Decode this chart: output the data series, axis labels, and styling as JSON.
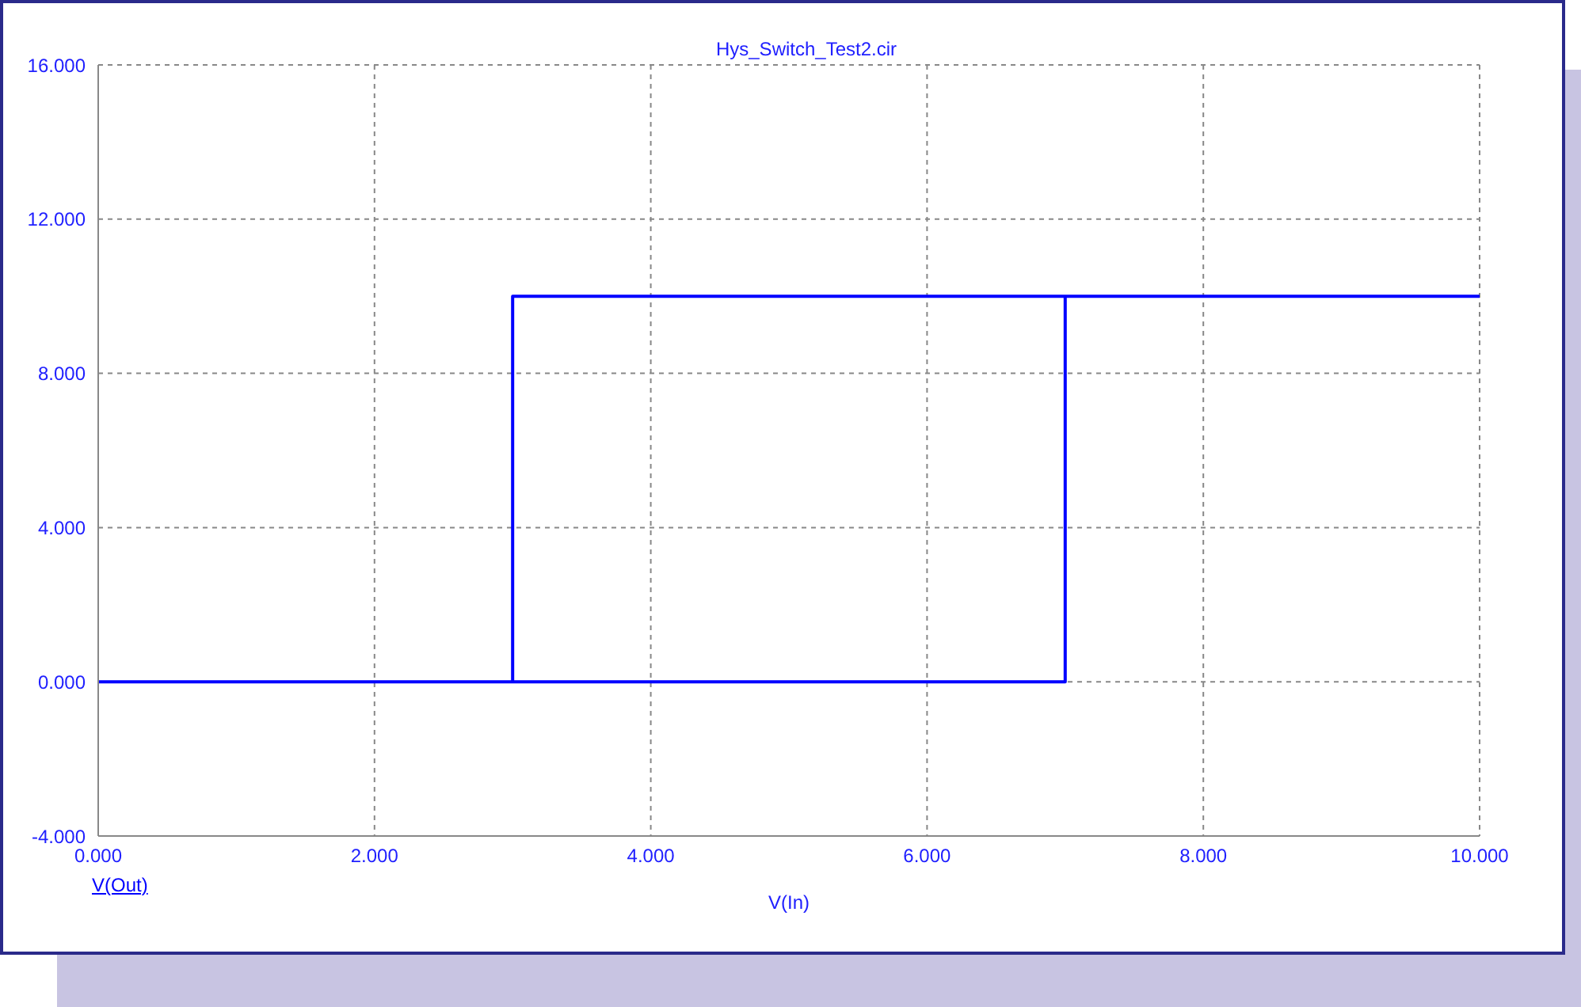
{
  "chart_data": {
    "type": "line",
    "title": "Hys_Switch_Test2.cir",
    "xlabel": "V(In)",
    "x": [
      0,
      7,
      7,
      10,
      3,
      3
    ],
    "series": [
      {
        "name": "V(Out)",
        "color": "#0000ff",
        "values": [
          0,
          0,
          10,
          10,
          10,
          0
        ]
      }
    ],
    "xlim": [
      0,
      10
    ],
    "xticks": [
      {
        "value": 0,
        "label": "0.000"
      },
      {
        "value": 2,
        "label": "2.000"
      },
      {
        "value": 4,
        "label": "4.000"
      },
      {
        "value": 6,
        "label": "6.000"
      },
      {
        "value": 8,
        "label": "8.000"
      },
      {
        "value": 10,
        "label": "10.000"
      }
    ],
    "ylim": [
      -4,
      16
    ],
    "yticks": [
      {
        "value": -4,
        "label": "-4.000"
      },
      {
        "value": 0,
        "label": "0.000"
      },
      {
        "value": 4,
        "label": "4.000"
      },
      {
        "value": 8,
        "label": "8.000"
      },
      {
        "value": 12,
        "label": "12.000"
      },
      {
        "value": 16,
        "label": "16.000"
      }
    ],
    "grid": true,
    "legend": "bottom left",
    "marker": "none",
    "line_style": "solid"
  }
}
